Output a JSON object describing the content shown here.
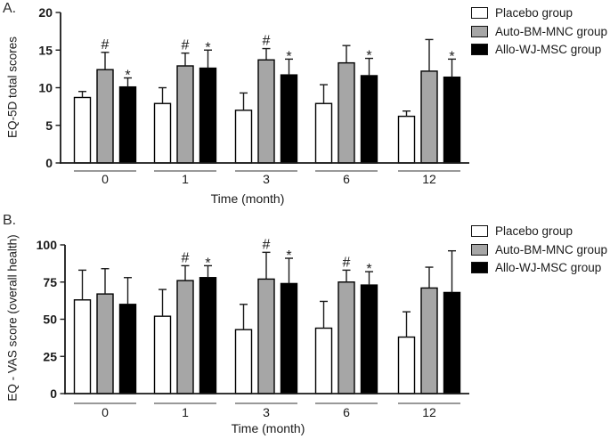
{
  "figure": {
    "background": "#ffffff",
    "panel_labels": [
      "A.",
      "B."
    ]
  },
  "colors": {
    "placebo": "#ffffff",
    "auto_bm_mnc": "#a6a6a6",
    "allo_wj_msc": "#000000",
    "bar_border": "#000000",
    "axis": "#1a1a1a",
    "text": "#1a1a1a"
  },
  "chart_data": [
    {
      "type": "bar",
      "panel": "A.",
      "title": "",
      "xlabel": "Time (month)",
      "ylabel": "EQ-5D total scores",
      "categories": [
        "0",
        "1",
        "3",
        "6",
        "12"
      ],
      "ylim": [
        0,
        20
      ],
      "yticks": [
        0,
        5,
        10,
        15,
        20
      ],
      "grid": false,
      "legend_position": "top-right",
      "legend": [
        "Placebo group",
        "Auto-BM-MNC group",
        "Allo-WJ-MSC group"
      ],
      "series": [
        {
          "name": "Placebo group",
          "color": "#ffffff",
          "values": [
            8.7,
            7.9,
            7.0,
            7.9,
            6.2
          ],
          "errors": [
            0.8,
            2.1,
            2.3,
            2.5,
            0.7
          ],
          "sig": [
            "",
            "",
            "",
            "",
            ""
          ]
        },
        {
          "name": "Auto-BM-MNC group",
          "color": "#a6a6a6",
          "values": [
            12.4,
            12.9,
            13.7,
            13.3,
            12.2
          ],
          "errors": [
            2.3,
            1.7,
            1.5,
            2.3,
            4.2
          ],
          "sig": [
            "#",
            "#",
            "#",
            "",
            ""
          ]
        },
        {
          "name": "Allo-WJ-MSC group",
          "color": "#000000",
          "values": [
            10.1,
            12.6,
            11.7,
            11.6,
            11.4
          ],
          "errors": [
            1.2,
            2.4,
            2.1,
            2.3,
            2.4
          ],
          "sig": [
            "*",
            "*",
            "*",
            "*",
            "*"
          ]
        }
      ]
    },
    {
      "type": "bar",
      "panel": "B.",
      "title": "",
      "xlabel": "Time (month)",
      "ylabel": "EQ - VAS score (overall health)",
      "categories": [
        "0",
        "1",
        "3",
        "6",
        "12"
      ],
      "ylim": [
        0,
        100
      ],
      "yticks": [
        0,
        25,
        50,
        75,
        100
      ],
      "grid": false,
      "legend_position": "top-right",
      "legend": [
        "Placebo group",
        "Auto-BM-MNC group",
        "Allo-WJ-MSC group"
      ],
      "series": [
        {
          "name": "Placebo group",
          "color": "#ffffff",
          "values": [
            63,
            52,
            43,
            44,
            38
          ],
          "errors": [
            20,
            18,
            17,
            18,
            17
          ],
          "sig": [
            "",
            "",
            "",
            "",
            ""
          ]
        },
        {
          "name": "Auto-BM-MNC group",
          "color": "#a6a6a6",
          "values": [
            67,
            76,
            77,
            75,
            71
          ],
          "errors": [
            17,
            10,
            18,
            8,
            14
          ],
          "sig": [
            "",
            "#",
            "#",
            "#",
            ""
          ]
        },
        {
          "name": "Allo-WJ-MSC group",
          "color": "#000000",
          "values": [
            60,
            78,
            74,
            73,
            68
          ],
          "errors": [
            18,
            8,
            17,
            9,
            28
          ],
          "sig": [
            "",
            "*",
            "*",
            "*",
            ""
          ]
        }
      ]
    }
  ]
}
